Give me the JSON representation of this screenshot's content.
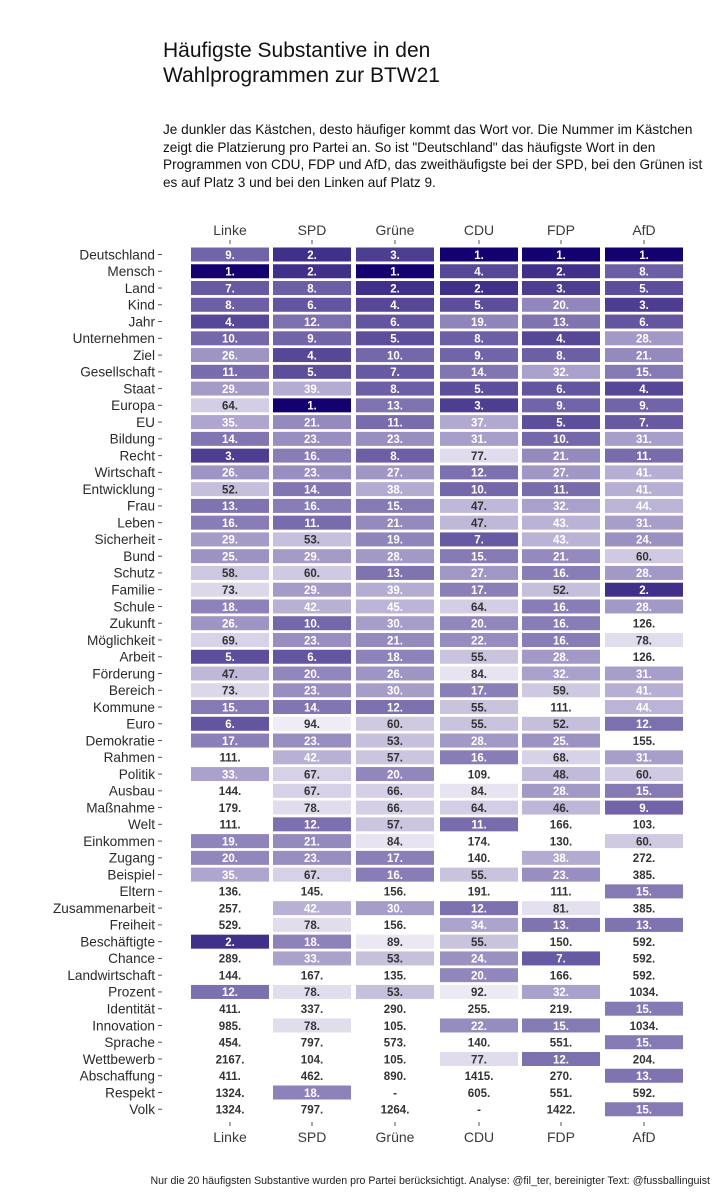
{
  "title_lines": [
    "Häufigste Substantive in den",
    "Wahlprogrammen zur BTW21"
  ],
  "subtitle": "Je dunkler das Kästchen, desto häufiger kommt das Wort vor. Die Nummer im Kästchen zeigt die Platzierung pro Partei an. So ist \"Deutschland\" das häufigste Wort in den Programmen von CDU, FDP und AfD, das zweithäufigste bei der SPD, bei den Grünen ist es auf Platz 3 und bei den Linken auf Platz 9.",
  "caption": "Nur die 20 häufigsten Substantive wurden pro Partei berücksichtigt. Analyse: @fil_ter, bereinigter Text: @fussballinguist",
  "colors": {
    "darkest": "#14006e",
    "lightest": "#f4f1f9",
    "text_dark_cell": "#ffffff",
    "text_light_cell": "#333333"
  },
  "chart_data": {
    "type": "heatmap",
    "title": "Häufigste Substantive in den Wahlprogrammen zur BTW21",
    "columns": [
      "Linke",
      "SPD",
      "Grüne",
      "CDU",
      "FDP",
      "AfD"
    ],
    "rows": [
      "Deutschland",
      "Mensch",
      "Land",
      "Kind",
      "Jahr",
      "Unternehmen",
      "Ziel",
      "Gesellschaft",
      "Staat",
      "Europa",
      "EU",
      "Bildung",
      "Recht",
      "Wirtschaft",
      "Entwicklung",
      "Frau",
      "Leben",
      "Sicherheit",
      "Bund",
      "Schutz",
      "Familie",
      "Schule",
      "Zukunft",
      "Möglichkeit",
      "Arbeit",
      "Förderung",
      "Bereich",
      "Kommune",
      "Euro",
      "Demokratie",
      "Rahmen",
      "Politik",
      "Ausbau",
      "Maßnahme",
      "Welt",
      "Einkommen",
      "Zugang",
      "Beispiel",
      "Eltern",
      "Zusammenarbeit",
      "Freiheit",
      "Beschäftigte",
      "Chance",
      "Landwirtschaft",
      "Prozent",
      "Identität",
      "Innovation",
      "Sprache",
      "Wettbewerb",
      "Abschaffung",
      "Respekt",
      "Volk"
    ],
    "values": [
      [
        9,
        2,
        3,
        1,
        1,
        1
      ],
      [
        1,
        2,
        1,
        4,
        2,
        8
      ],
      [
        7,
        8,
        2,
        2,
        3,
        5
      ],
      [
        8,
        6,
        4,
        5,
        20,
        3
      ],
      [
        4,
        12,
        6,
        19,
        13,
        6
      ],
      [
        10,
        9,
        5,
        8,
        4,
        28
      ],
      [
        26,
        4,
        10,
        9,
        8,
        21
      ],
      [
        11,
        5,
        7,
        14,
        32,
        15
      ],
      [
        29,
        39,
        8,
        5,
        6,
        4
      ],
      [
        64,
        1,
        13,
        3,
        9,
        9
      ],
      [
        35,
        21,
        11,
        37,
        5,
        7
      ],
      [
        14,
        23,
        23,
        31,
        10,
        31
      ],
      [
        3,
        16,
        8,
        77,
        21,
        11
      ],
      [
        26,
        23,
        27,
        12,
        27,
        41
      ],
      [
        52,
        14,
        38,
        10,
        11,
        41
      ],
      [
        13,
        16,
        15,
        47,
        32,
        44
      ],
      [
        16,
        11,
        21,
        47,
        43,
        31
      ],
      [
        29,
        53,
        19,
        7,
        43,
        24
      ],
      [
        25,
        29,
        28,
        15,
        21,
        60
      ],
      [
        58,
        60,
        13,
        27,
        16,
        28
      ],
      [
        73,
        29,
        39,
        17,
        52,
        2
      ],
      [
        18,
        42,
        45,
        64,
        16,
        28
      ],
      [
        26,
        10,
        30,
        20,
        16,
        126
      ],
      [
        69,
        23,
        21,
        22,
        16,
        78
      ],
      [
        5,
        6,
        18,
        55,
        28,
        126
      ],
      [
        47,
        20,
        26,
        84,
        32,
        31
      ],
      [
        73,
        23,
        30,
        17,
        59,
        41
      ],
      [
        15,
        14,
        12,
        55,
        111,
        44
      ],
      [
        6,
        94,
        60,
        55,
        52,
        12
      ],
      [
        17,
        23,
        53,
        28,
        25,
        155
      ],
      [
        111,
        42,
        57,
        16,
        68,
        31
      ],
      [
        33,
        67,
        20,
        109,
        48,
        60
      ],
      [
        144,
        67,
        66,
        84,
        28,
        15
      ],
      [
        179,
        78,
        66,
        64,
        46,
        9
      ],
      [
        111,
        12,
        57,
        11,
        166,
        103
      ],
      [
        19,
        21,
        84,
        174,
        130,
        60
      ],
      [
        20,
        23,
        17,
        140,
        38,
        272
      ],
      [
        35,
        67,
        16,
        55,
        23,
        385
      ],
      [
        136,
        145,
        156,
        191,
        111,
        15
      ],
      [
        257,
        42,
        30,
        12,
        81,
        385
      ],
      [
        529,
        78,
        156,
        34,
        13,
        13
      ],
      [
        2,
        18,
        89,
        55,
        150,
        592
      ],
      [
        289,
        33,
        53,
        24,
        7,
        592
      ],
      [
        144,
        167,
        135,
        20,
        166,
        592
      ],
      [
        12,
        78,
        53,
        92,
        32,
        1034
      ],
      [
        411,
        337,
        290,
        255,
        219,
        15
      ],
      [
        985,
        78,
        105,
        22,
        15,
        1034
      ],
      [
        454,
        797,
        573,
        140,
        551,
        15
      ],
      [
        2167,
        104,
        105,
        77,
        12,
        204
      ],
      [
        411,
        462,
        890,
        1415,
        270,
        13
      ],
      [
        1324,
        18,
        null,
        605,
        551,
        592
      ],
      [
        1324,
        797,
        1264,
        null,
        1422,
        15
      ]
    ],
    "missing_label": "-",
    "number_suffix": ".",
    "x_axis_position": "top and bottom",
    "grid": false,
    "legend": "none"
  }
}
